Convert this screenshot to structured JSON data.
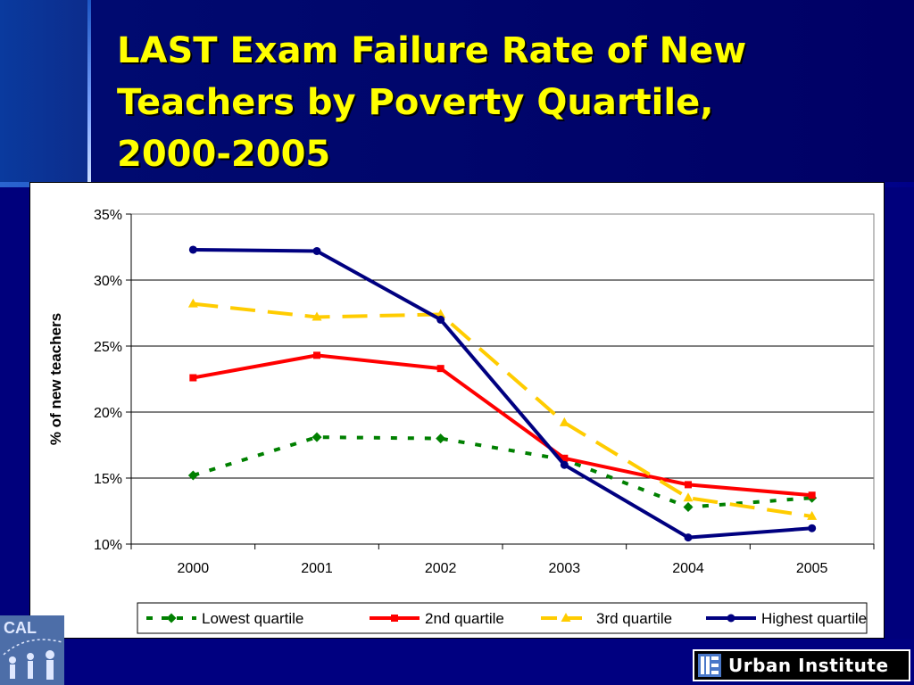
{
  "slide": {
    "title_lines": [
      "LAST Exam Failure Rate of New",
      "Teachers by Poverty Quartile,",
      "2000-2005"
    ]
  },
  "logos": {
    "left_text": "CAL",
    "right_text": "Urban Institute"
  },
  "chart_data": {
    "type": "line",
    "title": "",
    "xlabel": "",
    "ylabel": "% of new teachers",
    "x": [
      "2000",
      "2001",
      "2002",
      "2003",
      "2004",
      "2005"
    ],
    "ylim": [
      0.1,
      0.35
    ],
    "yticks": [
      "10%",
      "15%",
      "20%",
      "25%",
      "30%",
      "35%"
    ],
    "ytick_values": [
      0.1,
      0.15,
      0.2,
      0.25,
      0.3,
      0.35
    ],
    "grid": true,
    "legend_position": "bottom",
    "series": [
      {
        "name": "Lowest quartile",
        "values": [
          0.152,
          0.181,
          0.18,
          0.164,
          0.128,
          0.135
        ],
        "color": "#008000",
        "marker": "diamond",
        "dash": "7,12"
      },
      {
        "name": "2nd quartile",
        "values": [
          0.226,
          0.243,
          0.233,
          0.165,
          0.145,
          0.137
        ],
        "color": "#ff0000",
        "marker": "square",
        "dash": ""
      },
      {
        "name": "3rd quartile",
        "values": [
          0.282,
          0.272,
          0.274,
          0.192,
          0.135,
          0.121
        ],
        "color": "#ffcc00",
        "marker": "triangle",
        "dash": "28,14"
      },
      {
        "name": "Highest quartile",
        "values": [
          0.323,
          0.322,
          0.27,
          0.16,
          0.105,
          0.112
        ],
        "color": "#000080",
        "marker": "circle",
        "dash": ""
      }
    ]
  }
}
